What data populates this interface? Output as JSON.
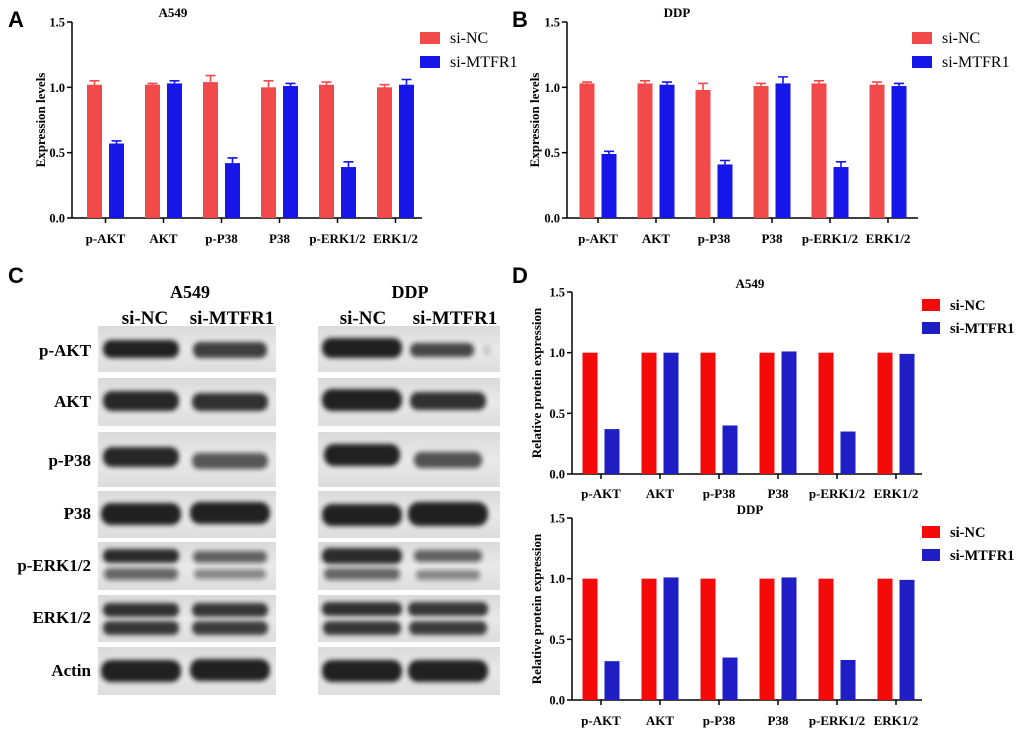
{
  "panel_labels": {
    "a": "A",
    "b": "B",
    "c": "C",
    "d": "D"
  },
  "chart_data": [
    {
      "type": "bar",
      "title": "A549",
      "xlabel": "",
      "ylabel": "Expression levels",
      "ylim": [
        0,
        1.5
      ],
      "yticks": [
        "0.0",
        "0.5",
        "1.0",
        "1.5"
      ],
      "legend": "top-right",
      "categories": [
        "p-AKT",
        "AKT",
        "p-P38",
        "P38",
        "p-ERK1/2",
        "ERK1/2"
      ],
      "series": [
        {
          "name": "si-NC",
          "color": "#F24A4A",
          "values": [
            1.02,
            1.02,
            1.04,
            1.0,
            1.02,
            1.0
          ],
          "errors": [
            0.03,
            0.01,
            0.05,
            0.05,
            0.02,
            0.02
          ]
        },
        {
          "name": "si-MTFR1",
          "color": "#1616E8",
          "values": [
            0.57,
            1.03,
            0.42,
            1.01,
            0.39,
            1.02
          ],
          "errors": [
            0.02,
            0.02,
            0.04,
            0.02,
            0.04,
            0.04
          ]
        }
      ]
    },
    {
      "type": "bar",
      "title": "DDP",
      "xlabel": "",
      "ylabel": "Expression levels",
      "ylim": [
        0,
        1.5
      ],
      "yticks": [
        "0.0",
        "0.5",
        "1.0",
        "1.5"
      ],
      "legend": "top-right",
      "categories": [
        "p-AKT",
        "AKT",
        "p-P38",
        "P38",
        "p-ERK1/2",
        "ERK1/2"
      ],
      "series": [
        {
          "name": "si-NC",
          "color": "#F24A4A",
          "values": [
            1.03,
            1.03,
            0.98,
            1.01,
            1.03,
            1.02
          ],
          "errors": [
            0.01,
            0.02,
            0.05,
            0.02,
            0.02,
            0.02
          ]
        },
        {
          "name": "si-MTFR1",
          "color": "#1616E8",
          "values": [
            0.49,
            1.02,
            0.41,
            1.03,
            0.39,
            1.01
          ],
          "errors": [
            0.02,
            0.02,
            0.03,
            0.05,
            0.04,
            0.02
          ]
        }
      ]
    },
    {
      "type": "bar",
      "title": "A549",
      "xlabel": "",
      "ylabel": "Relative protein expression",
      "ylim": [
        0,
        1.5
      ],
      "yticks": [
        "0.0",
        "0.5",
        "1.0",
        "1.5"
      ],
      "legend": "top-right",
      "categories": [
        "p-AKT",
        "AKT",
        "p-P38",
        "P38",
        "p-ERK1/2",
        "ERK1/2"
      ],
      "series": [
        {
          "name": "si-NC",
          "color": "#F50A0A",
          "values": [
            1.0,
            1.0,
            1.0,
            1.0,
            1.0,
            1.0
          ]
        },
        {
          "name": "si-MTFR1",
          "color": "#1E1EC4",
          "values": [
            0.37,
            1.0,
            0.4,
            1.01,
            0.35,
            0.99
          ]
        }
      ]
    },
    {
      "type": "bar",
      "title": "DDP",
      "xlabel": "",
      "ylabel": "Relative protein expression",
      "ylim": [
        0,
        1.5
      ],
      "yticks": [
        "0.0",
        "0.5",
        "1.0",
        "1.5"
      ],
      "legend": "top-right",
      "categories": [
        "p-AKT",
        "AKT",
        "p-P38",
        "P38",
        "p-ERK1/2",
        "ERK1/2"
      ],
      "series": [
        {
          "name": "si-NC",
          "color": "#F50A0A",
          "values": [
            1.0,
            1.0,
            1.0,
            1.0,
            1.0,
            1.0
          ]
        },
        {
          "name": "si-MTFR1",
          "color": "#1E1EC4",
          "values": [
            0.32,
            1.01,
            0.35,
            1.01,
            0.33,
            0.99
          ]
        }
      ]
    }
  ],
  "blot": {
    "groups": [
      {
        "title": "A549",
        "lanes": [
          "si-NC",
          "si-MTFR1"
        ]
      },
      {
        "title": "DDP",
        "lanes": [
          "si-NC",
          "si-MTFR1"
        ]
      }
    ],
    "rows": [
      "p-AKT",
      "AKT",
      "p-P38",
      "P38",
      "p-ERK1/2",
      "ERK1/2",
      "Actin"
    ]
  }
}
